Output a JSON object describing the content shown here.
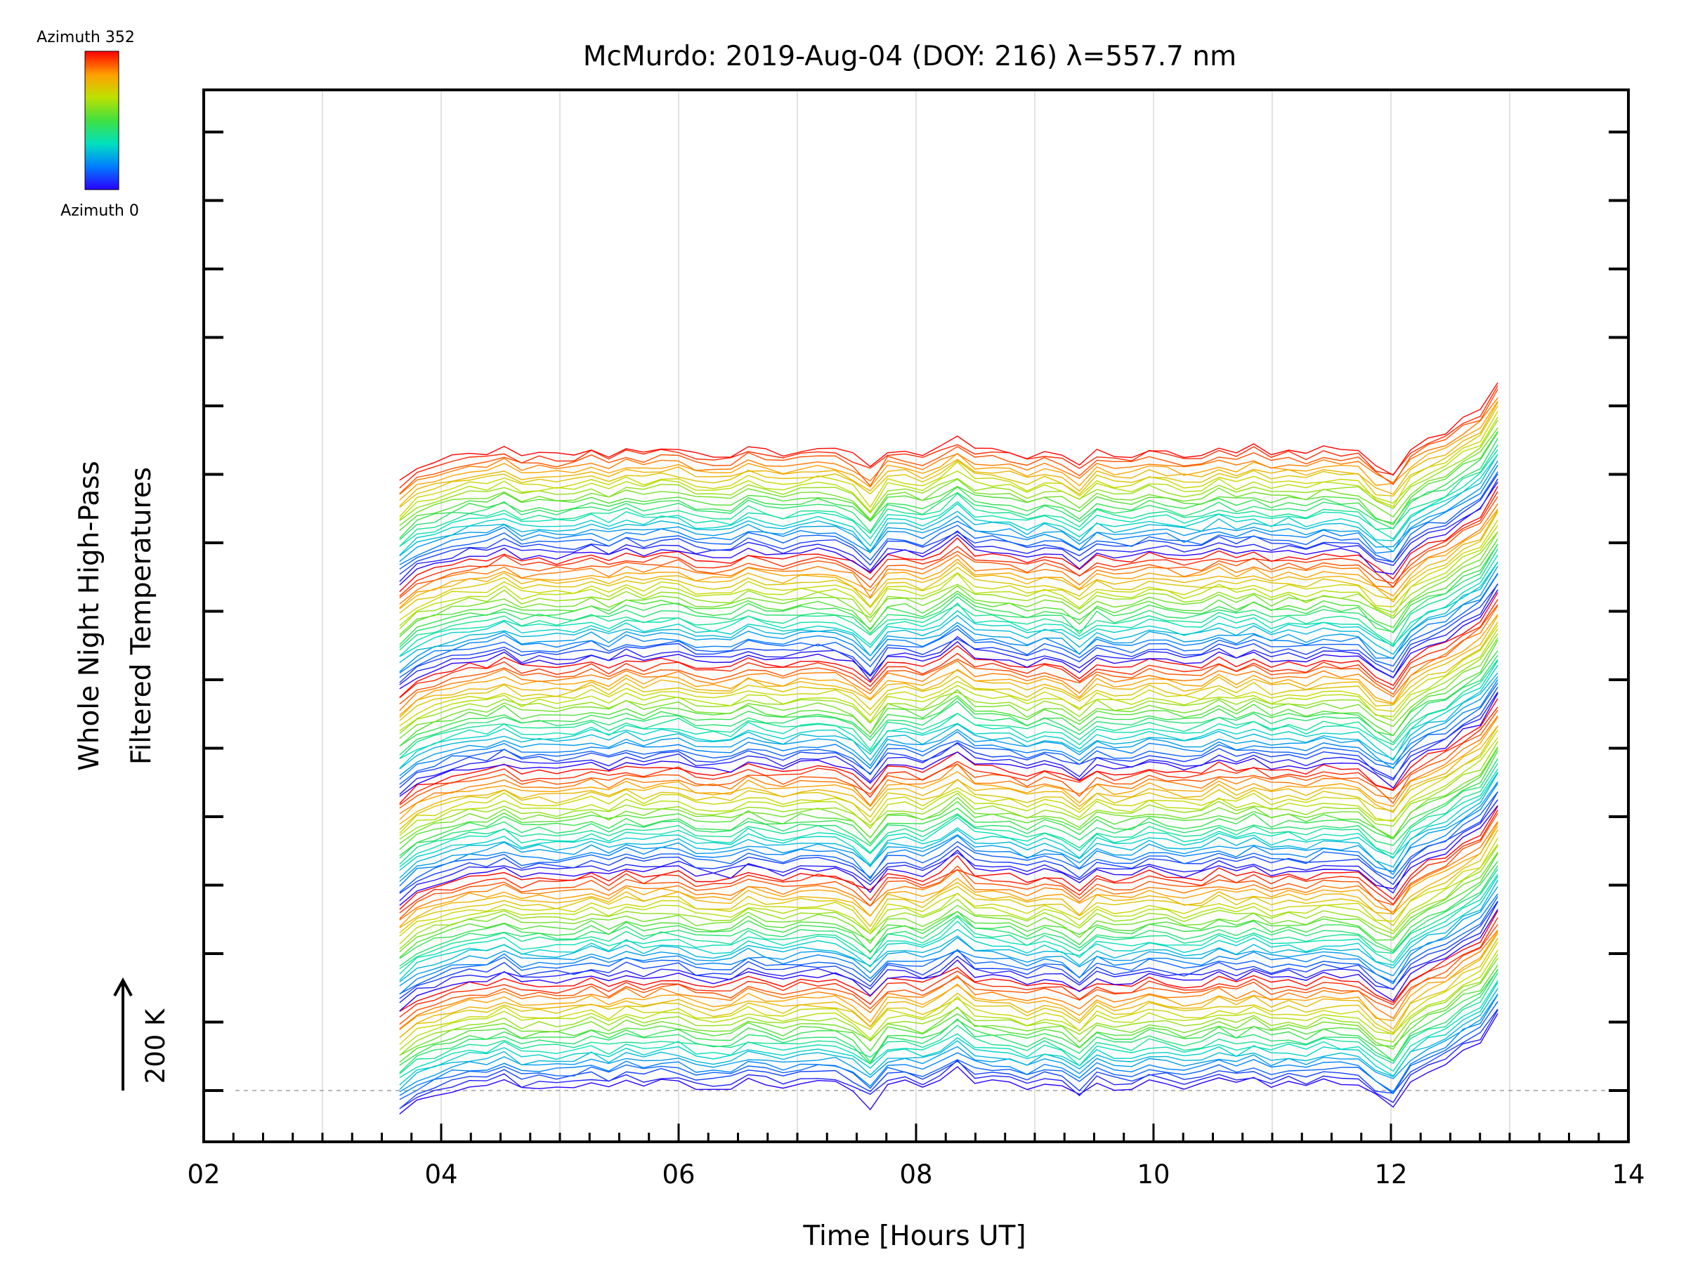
{
  "chart_data": {
    "type": "line",
    "title": "McMurdo: 2019-Aug-04 (DOY: 216) λ=557.7 nm",
    "xlabel": "Time [Hours UT]",
    "ylabel_line1": "Whole Night High-Pass",
    "ylabel_line2": "Filtered Temperatures",
    "xlim": [
      2,
      14
    ],
    "x_ticks": [
      "02",
      "04",
      "06",
      "08",
      "10",
      "12",
      "14"
    ],
    "x_tick_values": [
      2,
      4,
      6,
      8,
      10,
      12,
      14
    ],
    "grid_x_values": [
      3,
      4,
      5,
      6,
      7,
      8,
      9,
      10,
      11,
      12,
      13
    ],
    "data_start_hour": 3.65,
    "data_end_hour": 12.9,
    "series_count": 144,
    "azimuth_min": 0,
    "azimuth_max": 352,
    "scale_bar": "200 K",
    "colorbar": {
      "top_label": "Azimuth 352",
      "bottom_label": "Azimuth 0"
    },
    "legend_position": "top-left",
    "grid": "vertical"
  },
  "colors": {
    "axis": "#000000",
    "grid": "#d9d9d9",
    "baseline": "#a0a0a0"
  }
}
